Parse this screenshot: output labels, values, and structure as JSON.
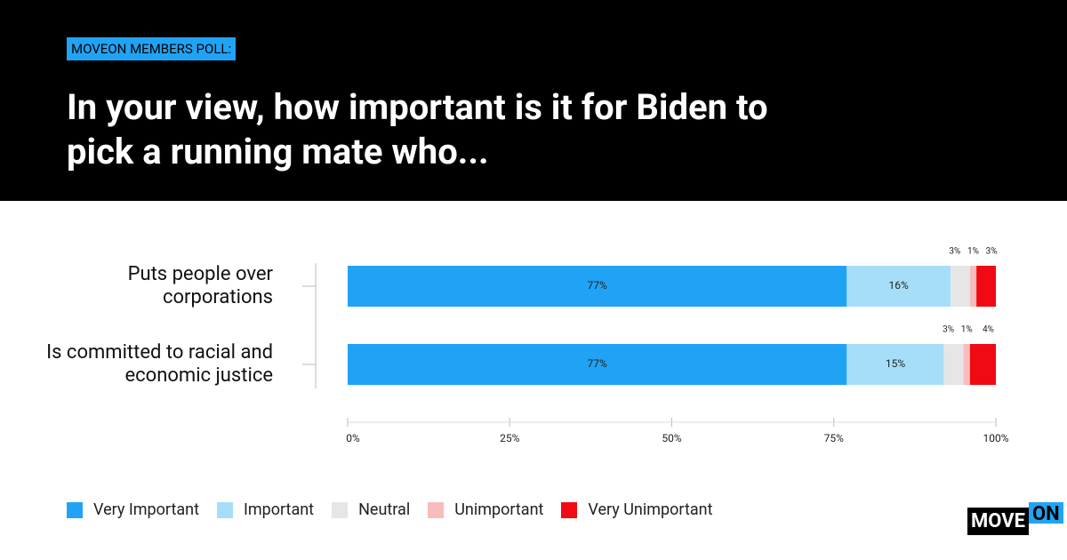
{
  "chart_data": {
    "type": "stacked-barh",
    "subtitle": "MOVEON MEMBERS POLL:",
    "title": "In your view, how important is it for Biden to pick a running mate who...",
    "categories": [
      "Puts people over corporations",
      "Is committed to racial and economic justice"
    ],
    "series": [
      {
        "name": "Very Important",
        "color": "#21a3f5",
        "values": [
          77,
          77
        ],
        "value_labels": [
          "77%",
          "77%"
        ]
      },
      {
        "name": "Important",
        "color": "#a6defa",
        "values": [
          16,
          15
        ],
        "value_labels": [
          "16%",
          "15%"
        ]
      },
      {
        "name": "Neutral",
        "color": "#e6e6e6",
        "values": [
          3,
          3
        ],
        "value_labels": [
          "3%",
          "3%"
        ]
      },
      {
        "name": "Unimportant",
        "color": "#f9bcbc",
        "values": [
          1,
          1
        ],
        "value_labels": [
          "1%",
          "1%"
        ]
      },
      {
        "name": "Very Unimportant",
        "color": "#f00a14",
        "values": [
          3,
          4
        ],
        "value_labels": [
          "3%",
          "4%"
        ]
      }
    ],
    "xlim": [
      0,
      100
    ],
    "xticks": [
      {
        "value": 0,
        "label": "0%"
      },
      {
        "value": 25,
        "label": "25%"
      },
      {
        "value": 50,
        "label": "50%"
      },
      {
        "value": 75,
        "label": "75%"
      },
      {
        "value": 100,
        "label": "100%"
      }
    ],
    "logo": {
      "left": "MOVE",
      "right": "ON"
    }
  }
}
